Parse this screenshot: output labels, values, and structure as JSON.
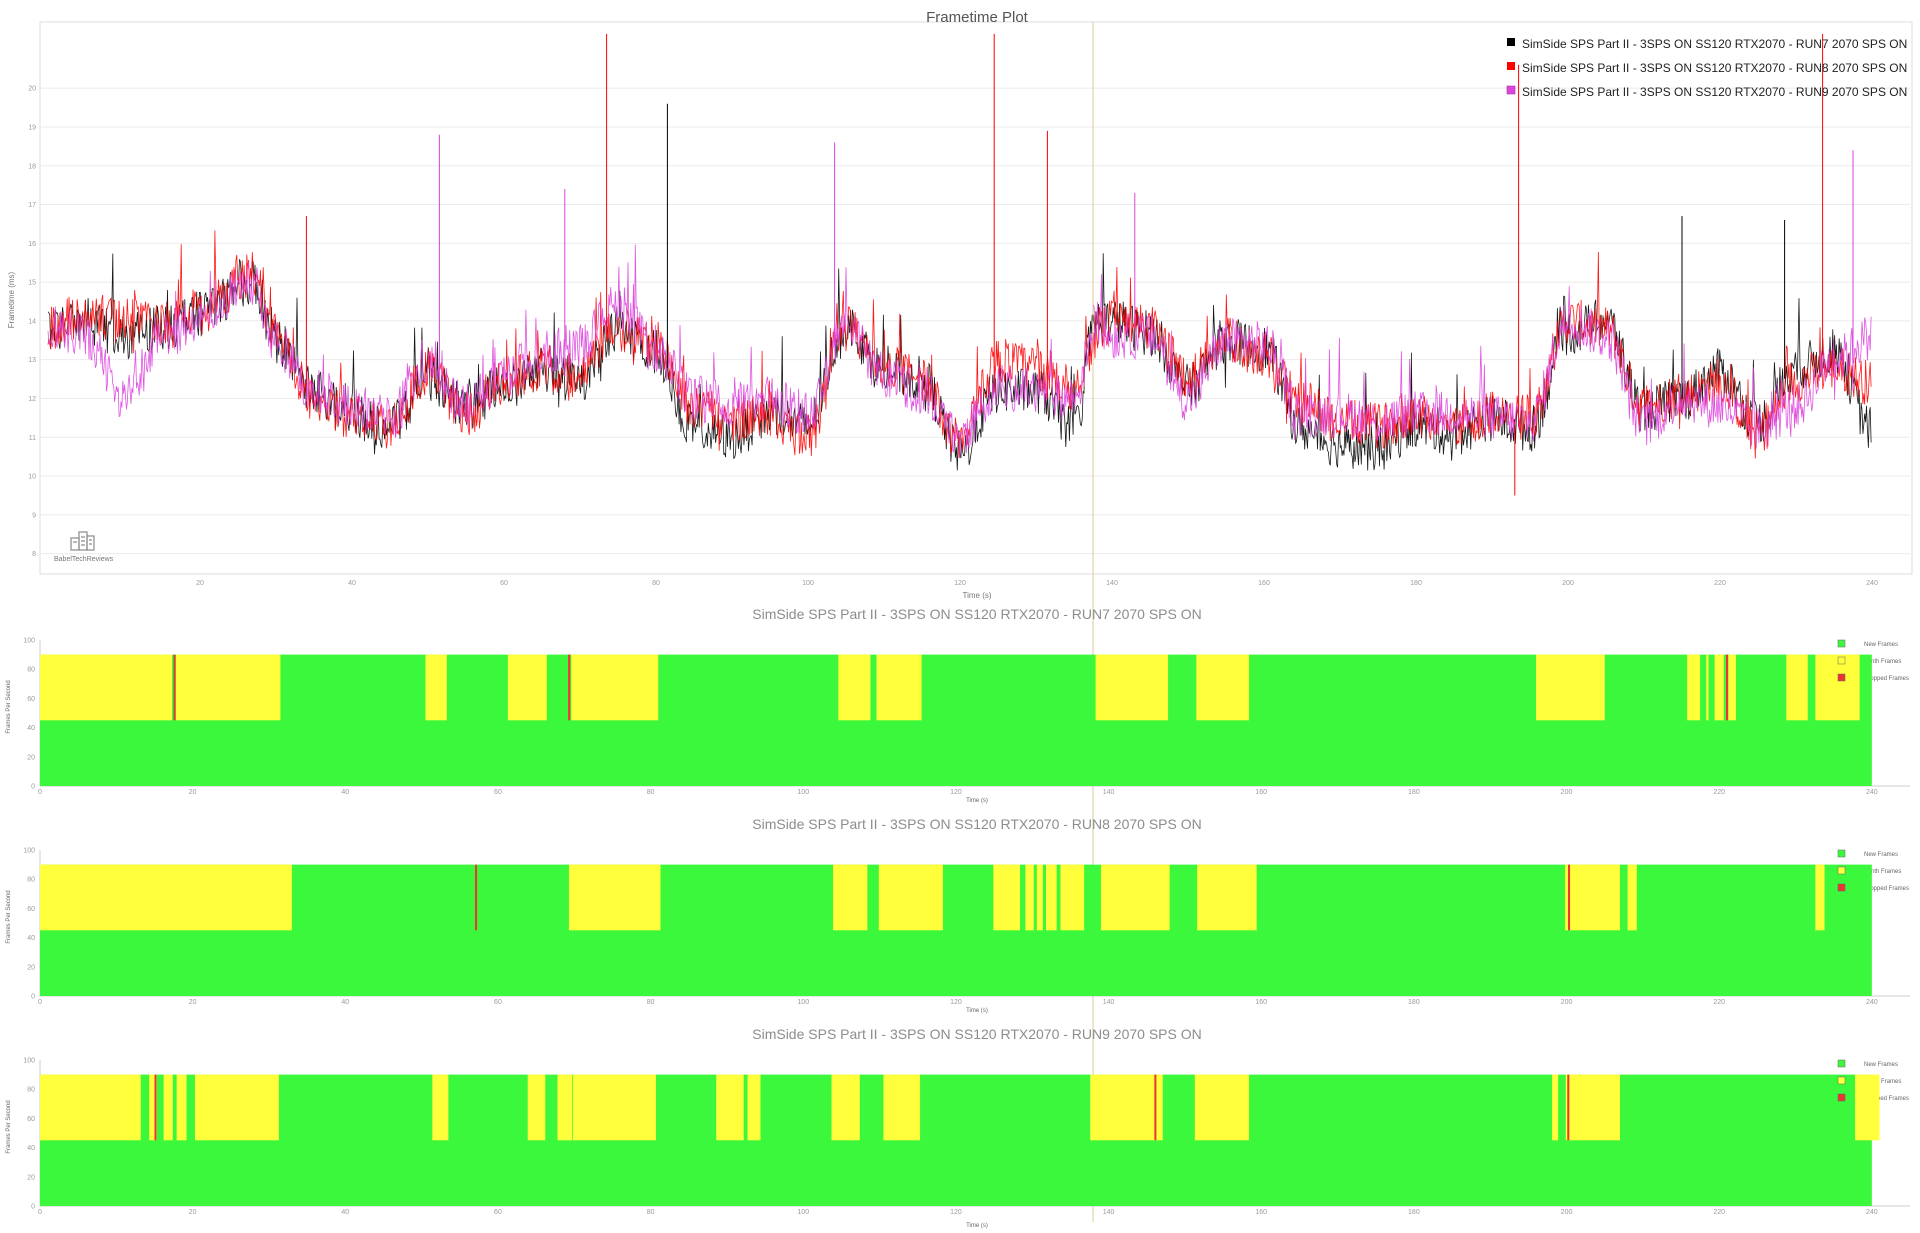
{
  "logo": {
    "label": "BabelTechReviews",
    "icon": "building-logo-icon"
  },
  "colors": {
    "run7": "#000000",
    "run8": "#ff0000",
    "run9": "#dd44dd",
    "new_frames": "#3cf83c",
    "synth_frames": "#ffff3c",
    "dropped_frames": "#ee3333",
    "grid": "#ebebeb",
    "marker": "#ddcc99"
  },
  "chart_data": [
    {
      "type": "line",
      "title": "Frametime Plot",
      "xlabel": "Time (s)",
      "ylabel": "Frametime (ms)",
      "xlim": [
        0,
        245
      ],
      "ylim": [
        7.5,
        21.5
      ],
      "x_ticks": [
        20,
        40,
        60,
        80,
        100,
        120,
        140,
        160,
        180,
        200,
        220,
        240
      ],
      "y_ticks": [
        8,
        9,
        10,
        11,
        12,
        13,
        14,
        15,
        16,
        17,
        18,
        19,
        20
      ],
      "grid": true,
      "legend_position": "top-right",
      "markers": [
        {
          "x": 137.5
        }
      ],
      "series": [
        {
          "name": "SimSide SPS Part II - 3SPS ON SS120 RTX2070 - RUN7 2070 SPS ON",
          "color_key": "run7",
          "x": [
            0,
            5,
            10,
            15,
            20,
            27,
            30,
            35,
            40,
            45,
            50,
            55,
            60,
            65,
            70,
            75,
            80,
            85,
            90,
            95,
            100,
            105,
            110,
            115,
            120,
            125,
            130,
            135,
            138,
            140,
            145,
            150,
            155,
            160,
            165,
            170,
            175,
            180,
            185,
            190,
            195,
            200,
            205,
            210,
            215,
            220,
            225,
            230,
            235,
            240
          ],
          "y": [
            13.8,
            14.0,
            13.6,
            13.8,
            14.2,
            15.0,
            13.5,
            12.2,
            11.5,
            11.3,
            12.5,
            11.8,
            12.3,
            12.7,
            12.5,
            13.7,
            13.2,
            11.2,
            11.0,
            11.6,
            11.3,
            13.9,
            12.7,
            12.5,
            10.6,
            12.2,
            12.2,
            11.2,
            14.0,
            14.0,
            13.7,
            12.3,
            13.5,
            13.3,
            11.2,
            10.8,
            10.7,
            11.3,
            11.1,
            11.5,
            11.2,
            13.7,
            14.0,
            11.7,
            12.0,
            12.7,
            11.4,
            12.8,
            13.2,
            11.2
          ]
        },
        {
          "name": "SimSide SPS Part II - 3SPS ON SS120 RTX2070 - RUN8 2070 SPS ON",
          "color_key": "run8",
          "x": [
            0,
            5,
            10,
            15,
            20,
            27,
            30,
            35,
            40,
            45,
            50,
            55,
            60,
            65,
            70,
            75,
            80,
            85,
            90,
            95,
            100,
            105,
            110,
            115,
            120,
            125,
            130,
            135,
            138,
            140,
            145,
            150,
            155,
            160,
            165,
            170,
            175,
            180,
            185,
            190,
            195,
            200,
            205,
            210,
            215,
            220,
            225,
            230,
            235,
            240
          ],
          "y": [
            13.8,
            14.2,
            14.0,
            14.0,
            14.2,
            15.2,
            13.6,
            12.0,
            11.5,
            11.3,
            12.7,
            11.6,
            12.4,
            12.8,
            12.6,
            13.8,
            13.4,
            11.8,
            11.5,
            11.5,
            11.0,
            13.8,
            12.9,
            12.5,
            10.9,
            13.0,
            12.8,
            12.3,
            13.6,
            14.0,
            13.8,
            12.6,
            13.5,
            13.1,
            11.9,
            11.4,
            11.3,
            11.6,
            11.3,
            11.6,
            11.5,
            14.0,
            13.8,
            11.8,
            12.1,
            12.4,
            11.1,
            12.5,
            12.8,
            12.4
          ]
        },
        {
          "name": "SimSide SPS Part II - 3SPS ON SS120 RTX2070 - RUN9 2070 SPS ON",
          "color_key": "run9",
          "x": [
            0,
            5,
            10,
            15,
            20,
            27,
            30,
            35,
            40,
            45,
            50,
            55,
            60,
            65,
            70,
            75,
            80,
            85,
            90,
            95,
            100,
            105,
            110,
            115,
            120,
            125,
            130,
            135,
            138,
            140,
            145,
            150,
            155,
            160,
            165,
            170,
            175,
            180,
            185,
            190,
            195,
            200,
            205,
            210,
            215,
            220,
            225,
            230,
            235,
            240
          ],
          "y": [
            13.8,
            13.6,
            12.0,
            13.6,
            14.0,
            15.0,
            13.4,
            12.2,
            11.8,
            11.5,
            13.0,
            11.8,
            12.6,
            13.2,
            13.4,
            14.4,
            13.2,
            12.0,
            11.8,
            12.0,
            11.6,
            13.8,
            12.6,
            12.2,
            11.0,
            12.3,
            12.2,
            12.0,
            14.0,
            13.6,
            13.6,
            12.0,
            13.5,
            13.4,
            11.6,
            11.6,
            11.4,
            11.6,
            11.6,
            11.5,
            11.4,
            14.0,
            13.6,
            11.3,
            12.0,
            11.8,
            11.2,
            11.8,
            13.0,
            13.6
          ]
        }
      ],
      "spikes": [
        {
          "x": 73.5,
          "y": 21.4,
          "series": "run8"
        },
        {
          "x": 81.5,
          "y": 19.6,
          "series": "run7"
        },
        {
          "x": 51.5,
          "y": 18.8,
          "series": "run9"
        },
        {
          "x": 103.5,
          "y": 18.6,
          "series": "run9"
        },
        {
          "x": 124.5,
          "y": 21.4,
          "series": "run8"
        },
        {
          "x": 131.5,
          "y": 18.9,
          "series": "run8"
        },
        {
          "x": 143.0,
          "y": 17.3,
          "series": "run9"
        },
        {
          "x": 193.5,
          "y": 20.6,
          "series": "run8"
        },
        {
          "x": 233.5,
          "y": 21.4,
          "series": "run8"
        },
        {
          "x": 237.5,
          "y": 18.4,
          "series": "run9"
        },
        {
          "x": 228.5,
          "y": 16.6,
          "series": "run7"
        },
        {
          "x": 215.0,
          "y": 16.7,
          "series": "run7"
        },
        {
          "x": 68.0,
          "y": 17.4,
          "series": "run9"
        },
        {
          "x": 34.0,
          "y": 16.7,
          "series": "run8"
        },
        {
          "x": 193.0,
          "y": 9.5,
          "series": "run8"
        }
      ]
    },
    {
      "type": "area",
      "title": "SimSide SPS Part II - 3SPS ON SS120 RTX2070 - RUN7 2070 SPS ON",
      "xlabel": "Time (s)",
      "ylabel": "Frames Per Second",
      "xlim": [
        0,
        245
      ],
      "ylim": [
        0,
        100
      ],
      "x_ticks": [
        0,
        20,
        40,
        60,
        80,
        100,
        120,
        140,
        160,
        180,
        200,
        220,
        240
      ],
      "y_ticks": [
        0,
        20,
        40,
        60,
        80,
        100
      ],
      "legend": [
        "New Frames",
        "Synth Frames",
        "Dropped Frames"
      ],
      "legend_position": "right",
      "new_frames_fps": 45,
      "total_fps": 90,
      "end_time": 240,
      "synth_intervals": [
        [
          0,
          17.3
        ],
        [
          17.8,
          31.5
        ],
        [
          50.5,
          53.3
        ],
        [
          61.3,
          66.4
        ],
        [
          69.6,
          81.0
        ],
        [
          104.6,
          108.8
        ],
        [
          109.6,
          115.5
        ],
        [
          138.3,
          147.8
        ],
        [
          151.5,
          158.4
        ],
        [
          196.0,
          205.0
        ],
        [
          215.8,
          217.5
        ],
        [
          218.3,
          218.6
        ],
        [
          219.4,
          220.6
        ],
        [
          221.2,
          222.2
        ],
        [
          228.8,
          231.6
        ],
        [
          232.6,
          238.4
        ]
      ],
      "dropped_marks": [
        17.5,
        69.2,
        220.9
      ]
    },
    {
      "type": "area",
      "title": "SimSide SPS Part II - 3SPS ON SS120 RTX2070 - RUN8 2070 SPS ON",
      "xlabel": "Time (s)",
      "ylabel": "Frames Per Second",
      "xlim": [
        0,
        245
      ],
      "ylim": [
        0,
        100
      ],
      "x_ticks": [
        0,
        20,
        40,
        60,
        80,
        100,
        120,
        140,
        160,
        180,
        200,
        220,
        240
      ],
      "y_ticks": [
        0,
        20,
        40,
        60,
        80,
        100
      ],
      "legend": [
        "New Frames",
        "Synth Frames",
        "Dropped Frames"
      ],
      "legend_position": "right",
      "new_frames_fps": 45,
      "total_fps": 90,
      "end_time": 240,
      "synth_intervals": [
        [
          0,
          33.0
        ],
        [
          69.3,
          81.3
        ],
        [
          103.9,
          108.4
        ],
        [
          109.9,
          118.3
        ],
        [
          124.9,
          128.4
        ],
        [
          129.1,
          130.2
        ],
        [
          130.6,
          131.4
        ],
        [
          131.8,
          133.2
        ],
        [
          133.7,
          136.8
        ],
        [
          139.0,
          148.0
        ],
        [
          151.6,
          159.4
        ],
        [
          199.8,
          207.0
        ],
        [
          208.0,
          209.2
        ],
        [
          232.6,
          233.8
        ]
      ],
      "dropped_marks": [
        57.0,
        200.2
      ]
    },
    {
      "type": "area",
      "title": "SimSide SPS Part II - 3SPS ON SS120 RTX2070 - RUN9 2070 SPS ON",
      "xlabel": "Time (s)",
      "ylabel": "Frames Per Second",
      "xlim": [
        0,
        245
      ],
      "ylim": [
        0,
        100
      ],
      "x_ticks": [
        0,
        20,
        40,
        60,
        80,
        100,
        120,
        140,
        160,
        180,
        200,
        220,
        240
      ],
      "y_ticks": [
        0,
        20,
        40,
        60,
        80,
        100
      ],
      "legend": [
        "New Frames",
        "Synth Frames",
        "Dropped Frames"
      ],
      "legend_position": "right",
      "new_frames_fps": 45,
      "total_fps": 90,
      "end_time": 240,
      "synth_intervals": [
        [
          0,
          13.2
        ],
        [
          14.3,
          15.3
        ],
        [
          16.2,
          17.4
        ],
        [
          17.9,
          19.2
        ],
        [
          20.3,
          31.3
        ],
        [
          51.4,
          53.5
        ],
        [
          63.9,
          66.2
        ],
        [
          67.8,
          69.7
        ],
        [
          69.8,
          80.7
        ],
        [
          88.6,
          92.2
        ],
        [
          92.7,
          94.4
        ],
        [
          103.7,
          107.4
        ],
        [
          110.5,
          115.3
        ],
        [
          137.6,
          147.1
        ],
        [
          151.3,
          158.4
        ],
        [
          198.1,
          198.9
        ],
        [
          199.9,
          207.0
        ],
        [
          237.8,
          241.0
        ]
      ],
      "dropped_marks": [
        15.0,
        146.0,
        200.1
      ]
    }
  ]
}
